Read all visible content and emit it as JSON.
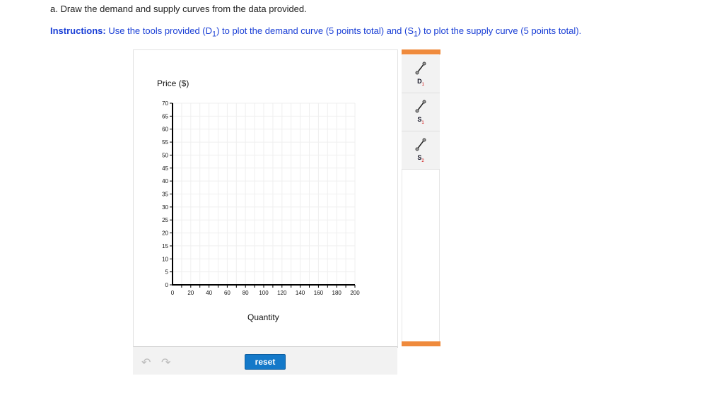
{
  "question": "a. Draw the demand and supply curves from the data provided.",
  "instructions": {
    "label": "Instructions:",
    "text_before": " Use the tools provided (D",
    "sub1": "1",
    "text_mid": ") to plot the demand curve (5 points total) and (S",
    "sub2": "1",
    "text_after": ") to plot the supply curve (5 points total)."
  },
  "chart_data": {
    "type": "line",
    "ylabel": "Price ($)",
    "xlabel": "Quantity",
    "xlim": [
      0,
      200
    ],
    "ylim": [
      0,
      70
    ],
    "xticks": [
      0,
      20,
      40,
      60,
      80,
      100,
      120,
      140,
      160,
      180,
      200
    ],
    "yticks": [
      0,
      5,
      10,
      15,
      20,
      25,
      30,
      35,
      40,
      45,
      50,
      55,
      60,
      65,
      70
    ],
    "grid": true,
    "series": []
  },
  "tools": [
    {
      "letter": "D",
      "sub": "1",
      "icon": "line-tool-icon"
    },
    {
      "letter": "S",
      "sub": "1",
      "icon": "line-tool-icon"
    },
    {
      "letter": "S",
      "sub": "2",
      "icon": "line-tool-icon"
    }
  ],
  "reset_label": "reset",
  "colors": {
    "accent": "#ef8a3c",
    "button": "#1479c9",
    "instructions": "#1a3fd6"
  }
}
